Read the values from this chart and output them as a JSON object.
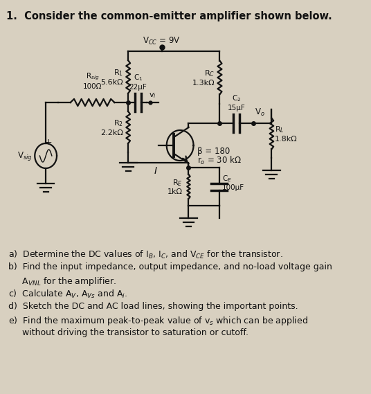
{
  "title": "1.  Consider the common-emitter amplifier shown below.",
  "bg_color": "#d8d0c0",
  "text_color": "#111111",
  "vcc_label": "V$_{CC}$ = 9V",
  "r1_label": "R$_1$\n5.6kΩ",
  "r2_label": "R$_2$\n2.2kΩ",
  "rc_label": "R$_C$\n1.3kΩ",
  "re_label": "R$_E$\n1kΩ",
  "rl_label": "R$_L$\n1.8kΩ",
  "c1_label": "C$_1$\n22μF",
  "c2_label": "C$_2$\n15μF",
  "ce_label": "C$_E$\n100μF",
  "rsig_label": "R$_{sig}$\n100Ω",
  "vsig_label": "V$_{sig}$",
  "beta_label": "β = 180",
  "ro_label": "r$_o$ = 30 kΩ",
  "vo_label": "V$_o$",
  "vi_label": "v$_i$",
  "q_a": "a)  Determine the DC values of I$_B$, I$_C$, and V$_{CE}$ for the transistor.",
  "q_b1": "b)  Find the input impedance, output impedance, and no-load voltage gain",
  "q_b2": "     A$_{VNL}$ for the amplifier.",
  "q_c": "c)  Calculate A$_V$, A$_{Vs}$ and A$_i$.",
  "q_d": "d)  Sketch the DC and AC load lines, showing the important points.",
  "q_e1": "e)  Find the maximum peak-to-peak value of v$_s$ which can be applied",
  "q_e2": "     without driving the transistor to saturation or cutoff."
}
